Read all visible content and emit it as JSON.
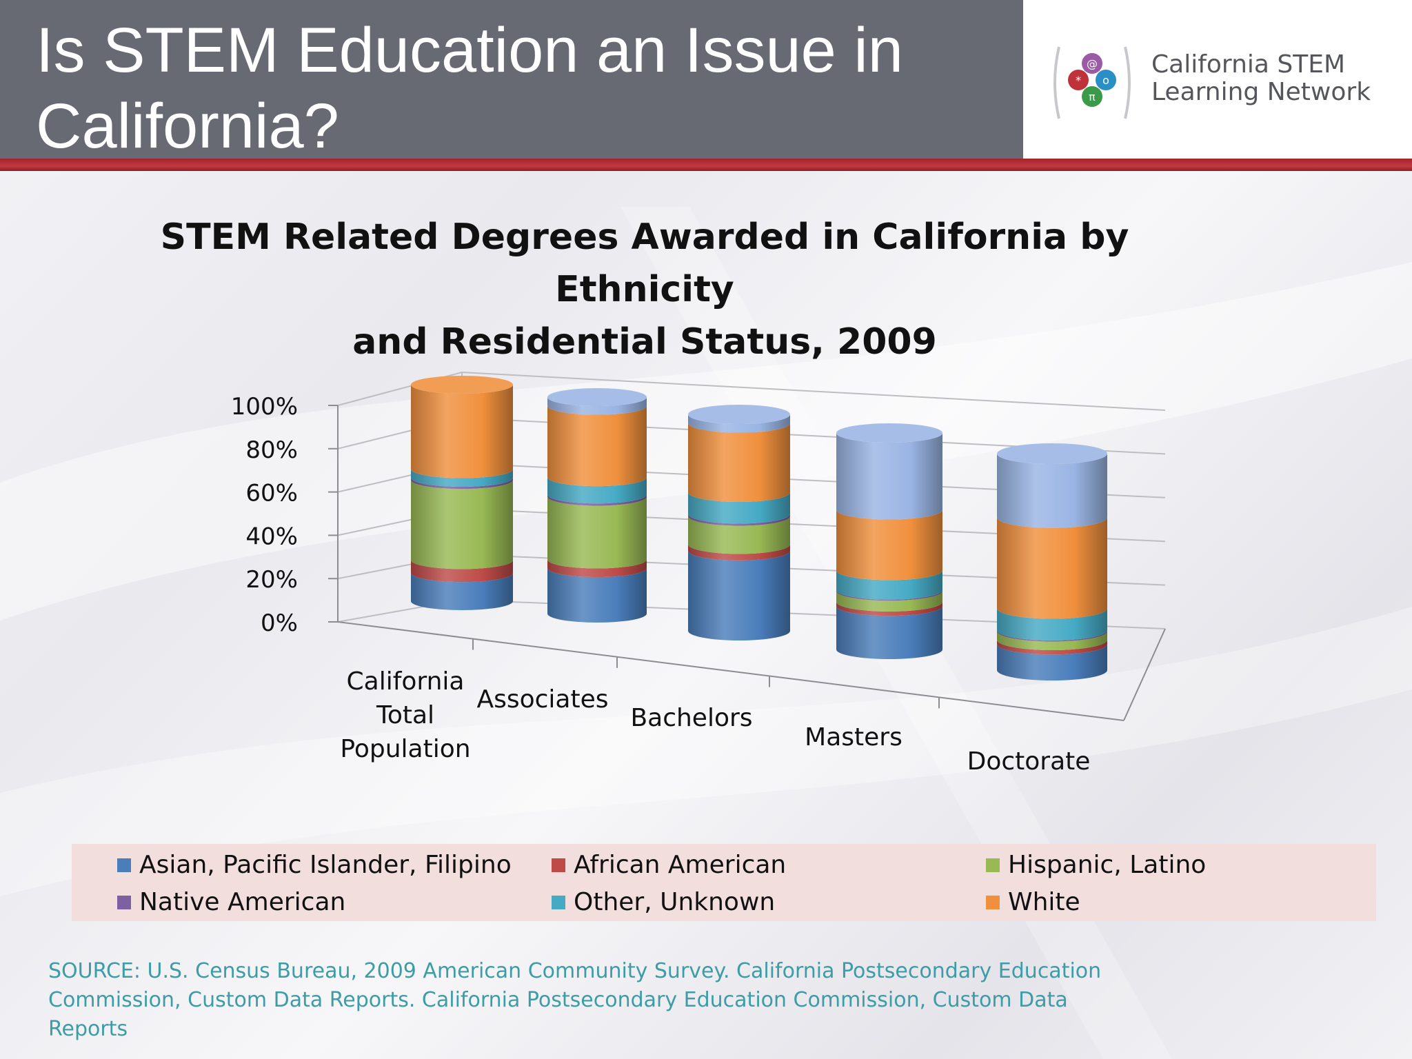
{
  "slide": {
    "title_line1": "Is STEM Education an Issue in",
    "title_line2": "California?"
  },
  "logo": {
    "name_line1": "California STEM",
    "name_line2": "Learning Network",
    "icon": "stem-network-logo-icon"
  },
  "colors": {
    "header_bg": "#676973",
    "accent_red": "#b02b33",
    "legend_bg": "#f3dede",
    "source_text": "#3d9ca5"
  },
  "chart_data": {
    "type": "bar",
    "stacked": true,
    "style": "3d-cylinder",
    "title_line1": "STEM Related Degrees Awarded in California by Ethnicity",
    "title_line2": "and Residential Status, 2009",
    "categories": [
      [
        "California",
        "Total",
        "Population"
      ],
      [
        "Associates"
      ],
      [
        "Bachelors"
      ],
      [
        "Masters"
      ],
      [
        "Doctorate"
      ]
    ],
    "ylim": [
      0,
      100
    ],
    "y_ticks": [
      "0%",
      "20%",
      "40%",
      "60%",
      "80%",
      "100%"
    ],
    "grid": true,
    "legend_position": "bottom",
    "series": [
      {
        "name": "Asian, Pacific Islander, Filipino",
        "color": "#4a7ebb",
        "values": [
          13,
          21,
          37,
          20,
          12
        ]
      },
      {
        "name": "African American",
        "color": "#be4b48",
        "values": [
          6,
          4,
          3,
          2,
          2
        ]
      },
      {
        "name": "Hispanic, Latino",
        "color": "#98b954",
        "values": [
          37,
          29,
          13,
          5,
          4
        ]
      },
      {
        "name": "Native American",
        "color": "#7d60a0",
        "values": [
          1,
          1,
          1,
          0.5,
          0.5
        ]
      },
      {
        "name": "Other, Unknown",
        "color": "#46aac5",
        "values": [
          4,
          8,
          10,
          9,
          10
        ]
      },
      {
        "name": "White",
        "color": "#f0903d",
        "values": [
          39,
          33,
          32,
          28,
          42
        ]
      },
      {
        "name": "",
        "color": "#9ab5e4",
        "values": [
          0,
          4,
          4,
          35.5,
          29.5
        ]
      }
    ]
  },
  "source": {
    "line1": "SOURCE:  U.S. Census Bureau, 2009 American Community Survey. California Postsecondary Education",
    "line2": "Commission, Custom Data Reports. California Postsecondary Education Commission, Custom Data Reports"
  }
}
